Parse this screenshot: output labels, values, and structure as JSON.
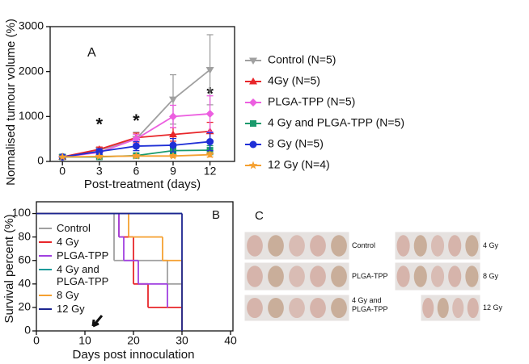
{
  "chart_data": [
    {
      "type": "line",
      "panel_label": "A",
      "ylabel": "Normalised tumour volume (%)",
      "xlabel": "Post-treatment (days)",
      "x": [
        0,
        3,
        6,
        9,
        12
      ],
      "xlim": [
        -1,
        14
      ],
      "xticks": [
        0,
        3,
        6,
        9,
        12
      ],
      "ylim": [
        0,
        3000
      ],
      "yticks": [
        0,
        1000,
        2000,
        3000
      ],
      "annotations": [
        {
          "text": "*",
          "x": 3,
          "y": 800
        },
        {
          "text": "*",
          "x": 6,
          "y": 880
        },
        {
          "text": "*",
          "x": 12,
          "y": 1480
        }
      ],
      "series": [
        {
          "name": "Control (N=5)",
          "color": "#a0a0a0",
          "marker": "triangle-down",
          "values": [
            100,
            250,
            500,
            1380,
            2040
          ],
          "errors": [
            20,
            60,
            150,
            550,
            780
          ]
        },
        {
          "name": "4Gy (N=5)",
          "color": "#e8262a",
          "marker": "triangle-up",
          "values": [
            100,
            270,
            530,
            600,
            670
          ],
          "errors": [
            20,
            50,
            100,
            150,
            200
          ]
        },
        {
          "name": "PLGA-TPP (N=5)",
          "color": "#ec5fe0",
          "marker": "diamond",
          "values": [
            100,
            200,
            500,
            1000,
            1060
          ],
          "errors": [
            20,
            40,
            100,
            250,
            400
          ]
        },
        {
          "name": "4 Gy and PLGA-TPP (N=5)",
          "color": "#1a9a6c",
          "marker": "square",
          "values": [
            100,
            100,
            130,
            240,
            250
          ],
          "errors": [
            10,
            20,
            30,
            80,
            100
          ]
        },
        {
          "name": "8 Gy (N=5)",
          "color": "#1f2fd6",
          "marker": "circle",
          "values": [
            100,
            220,
            340,
            360,
            440
          ],
          "errors": [
            20,
            60,
            100,
            150,
            200
          ]
        },
        {
          "name": "12 Gy (N=4)",
          "color": "#f5a030",
          "marker": "star",
          "values": [
            100,
            110,
            120,
            120,
            150
          ],
          "errors": [
            10,
            20,
            30,
            30,
            50
          ]
        }
      ]
    },
    {
      "type": "survival",
      "panel_label": "B",
      "ylabel": "Survival percent (%)",
      "xlabel": "Days post innoculation",
      "xlim": [
        0,
        40
      ],
      "xticks": [
        0,
        10,
        20,
        30,
        40
      ],
      "ylim": [
        0,
        110
      ],
      "yticks": [
        0,
        20,
        40,
        60,
        80,
        100
      ],
      "series": [
        {
          "name": "Control",
          "color": "#a0a0a0",
          "x": [
            0,
            16,
            27,
            30
          ],
          "values": [
            100,
            60,
            40,
            0
          ]
        },
        {
          "name": "4 Gy",
          "color": "#e8262a",
          "x": [
            0,
            17,
            20,
            23,
            30
          ],
          "values": [
            100,
            80,
            40,
            20,
            0
          ]
        },
        {
          "name": "PLGA-TPP",
          "color": "#a040e0",
          "x": [
            0,
            17,
            18,
            21,
            27
          ],
          "values": [
            100,
            80,
            60,
            40,
            20
          ]
        },
        {
          "name": "4 Gy and PLGA-TPP",
          "color": "#1a9a9a",
          "x": [
            0,
            30
          ],
          "values": [
            100,
            100
          ]
        },
        {
          "name": "8 Gy",
          "color": "#f5a030",
          "x": [
            0,
            19,
            26,
            30
          ],
          "values": [
            100,
            80,
            60,
            0
          ]
        },
        {
          "name": "12 Gy",
          "color": "#1c2590",
          "x": [
            0,
            30
          ],
          "values": [
            100,
            0
          ]
        }
      ]
    }
  ],
  "panel_c": {
    "label": "C",
    "captions": [
      "Control",
      "PLGA-TPP",
      "4 Gy and PLGA-TPP",
      "4 Gy",
      "8 Gy",
      "12 Gy"
    ]
  }
}
